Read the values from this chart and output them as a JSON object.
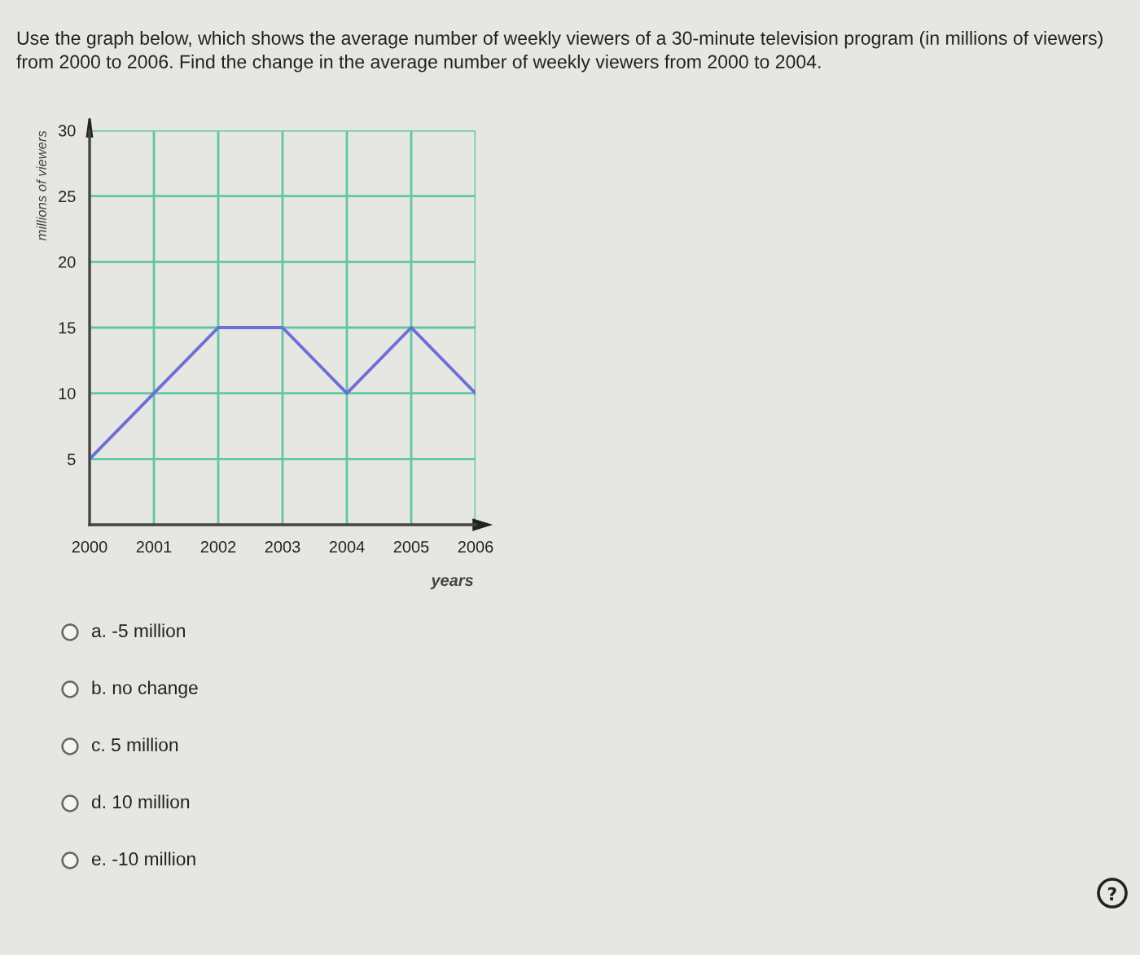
{
  "chart_data": {
    "type": "line",
    "title": "Use the graph below, which shows the average number of weekly viewers of a 30-minute television program (in millions of viewers) from 2000 to 2006. Find the change in the average number of weekly viewers from 2000 to 2004.",
    "xlabel": "years",
    "ylabel": "millions of viewers",
    "x": [
      2000,
      2001,
      2002,
      2003,
      2004,
      2005,
      2006
    ],
    "series": [
      {
        "color": "#6b70d4",
        "values": [
          5,
          10,
          15,
          15,
          10,
          15,
          10
        ]
      }
    ],
    "xlim": [
      2000,
      2006
    ],
    "ylim": [
      0,
      30
    ],
    "xticks": [
      2000,
      2001,
      2002,
      2003,
      2004,
      2005,
      2006
    ],
    "yticks": [
      5,
      10,
      15,
      20,
      25,
      30
    ],
    "grid": true,
    "annotations": [
      "a. -5 million",
      "b. no change",
      "c. 5 million",
      "d. 10 million",
      "e. -10 million"
    ]
  }
}
